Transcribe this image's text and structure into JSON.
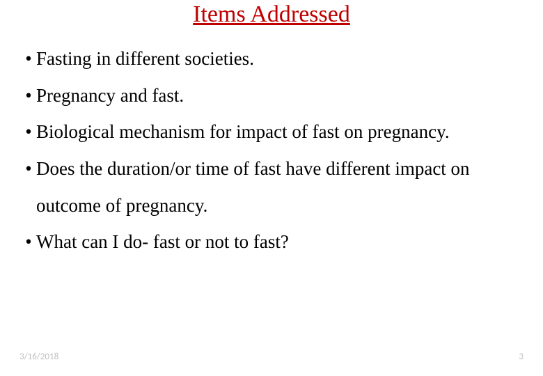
{
  "title": {
    "text": "Items Addressed",
    "color": "#c00000",
    "fontsize": 34,
    "font_weight": "normal"
  },
  "bullets": {
    "items": [
      "Fasting in different societies.",
      "Pregnancy and fast.",
      "Biological mechanism for impact of fast on pregnancy.",
      "Does the duration/or time of fast have different impact on outcome of pregnancy.",
      "What can I do- fast or not to fast?"
    ],
    "fontsize": 27,
    "line_height": 1.95,
    "color": "#000000",
    "bullet_char": "•"
  },
  "footer": {
    "date": "3/16/2018",
    "page_number": "3",
    "color": "#bfbfbf",
    "fontsize": 13
  },
  "background_color": "#ffffff"
}
